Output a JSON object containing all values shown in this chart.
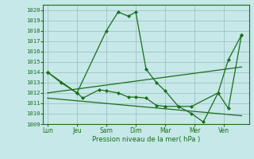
{
  "xlabel": "Pression niveau de la mer( hPa )",
  "ylim": [
    1009,
    1020.5
  ],
  "yticks": [
    1009,
    1010,
    1011,
    1012,
    1013,
    1014,
    1015,
    1016,
    1017,
    1018,
    1019,
    1020
  ],
  "xtick_labels": [
    "Lun",
    "Jeu",
    "Sam",
    "Dim",
    "Mar",
    "Mer",
    "Ven"
  ],
  "xtick_positions": [
    0,
    1,
    2,
    3,
    4,
    5,
    6
  ],
  "xlim": [
    -0.15,
    6.85
  ],
  "background_color": "#c6e8e8",
  "grid_color": "#99bbbb",
  "line_color": "#1a6e1a",
  "series1_x": [
    0,
    0.45,
    1.0,
    2.0,
    2.4,
    2.75,
    3.0,
    3.35,
    3.7,
    4.0,
    4.45,
    4.9,
    5.8,
    6.15,
    6.6
  ],
  "series1_y": [
    1014.0,
    1013.0,
    1012.0,
    1018.0,
    1019.8,
    1019.4,
    1019.8,
    1014.3,
    1013.0,
    1012.2,
    1010.7,
    1010.7,
    1012.0,
    1015.2,
    1017.6
  ],
  "series2_x": [
    0,
    1.0,
    1.2,
    1.75,
    2.0,
    2.4,
    2.75,
    3.0,
    3.35,
    3.7,
    4.0,
    4.45,
    4.9,
    5.3,
    5.8,
    6.15,
    6.6
  ],
  "series2_y": [
    1014.0,
    1012.0,
    1011.5,
    1012.3,
    1012.2,
    1012.0,
    1011.6,
    1011.6,
    1011.5,
    1010.8,
    1010.7,
    1010.7,
    1010.0,
    1009.2,
    1012.0,
    1010.5,
    1017.6
  ],
  "line3_x": [
    0,
    6.6
  ],
  "line3_y": [
    1012.0,
    1014.5
  ],
  "line4_x": [
    0,
    6.6
  ],
  "line4_y": [
    1011.5,
    1009.8
  ]
}
